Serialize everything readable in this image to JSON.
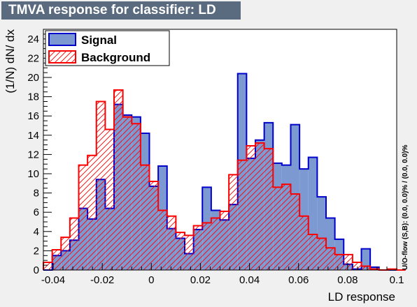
{
  "chart_data": {
    "type": "histogram",
    "title": "TMVA response for classifier: LD",
    "xlabel": "LD response",
    "ylabel": "(1/N) dN/ dx",
    "side_label": "U/O-flow (S,B): (0.0, 0.0)% / (0.0, 0.0)%",
    "xlim": [
      -0.044,
      0.1
    ],
    "ylim": [
      0,
      25
    ],
    "bin_width": 0.0036,
    "x_ticks": [
      -0.04,
      -0.02,
      0,
      0.02,
      0.04,
      0.06,
      0.08,
      0.1
    ],
    "x_tick_labels": [
      "-0.04",
      "-0.02",
      "0",
      "0.02",
      "0.04",
      "0.06",
      "0.08",
      "0.1"
    ],
    "y_ticks": [
      0,
      2,
      4,
      6,
      8,
      10,
      12,
      14,
      16,
      18,
      20,
      22,
      24
    ],
    "y_tick_labels": [
      "0",
      "2",
      "4",
      "6",
      "8",
      "10",
      "12",
      "14",
      "16",
      "18",
      "20",
      "22",
      "24"
    ],
    "legend_position": "top-left",
    "series": [
      {
        "name": "Signal",
        "fill": "#7d99d1",
        "line": "#0000cc",
        "style": "solid",
        "values": [
          0,
          1.5,
          2,
          3.1,
          6.4,
          5.3,
          9.4,
          6.4,
          17.2,
          16.1,
          15.9,
          14.2,
          8.7,
          10.8,
          4.3,
          3.3,
          1.7,
          4.2,
          8.6,
          6.2,
          5.2,
          6.8,
          20.4,
          11.6,
          13.5,
          15.3,
          11.1,
          10.9,
          15.1,
          10.5,
          11.7,
          7.6,
          5.4,
          3.2,
          0.6,
          0.1,
          2.2,
          0.3,
          0,
          0,
          0
        ]
      },
      {
        "name": "Background",
        "fill": "#ffffff",
        "line": "#ff0000",
        "style": "hatched",
        "values": [
          0.8,
          2.1,
          3.4,
          5.4,
          10.9,
          11.9,
          17.5,
          14.6,
          18.7,
          15.9,
          15.2,
          10.9,
          9.2,
          6.2,
          5.6,
          3.9,
          3.6,
          4.6,
          4.9,
          5.4,
          6.1,
          9.9,
          11.4,
          12.9,
          13.2,
          12.6,
          8.6,
          8.9,
          7.9,
          5.6,
          3.7,
          3.3,
          2.3,
          1.6,
          1.6,
          0.8,
          0.4,
          0.1,
          0,
          0.1,
          0
        ]
      }
    ]
  }
}
